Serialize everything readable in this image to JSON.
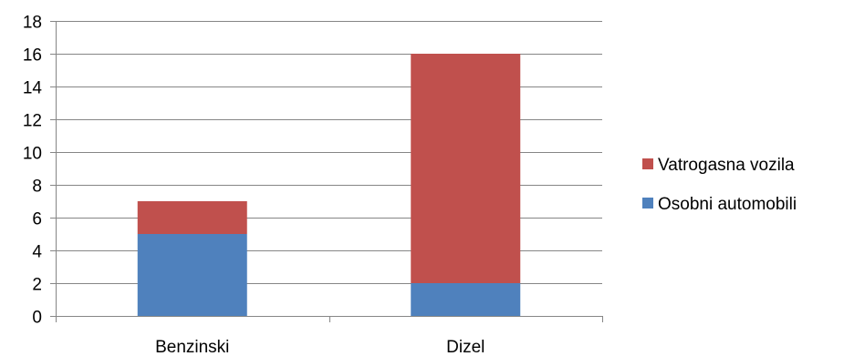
{
  "chart_data": {
    "type": "bar",
    "stacked": true,
    "categories": [
      "Benzinski",
      "Dizel"
    ],
    "series": [
      {
        "name": "Osobni automobili",
        "values": [
          5,
          2
        ],
        "color": "#4F81BD"
      },
      {
        "name": "Vatrogasna vozila",
        "values": [
          2,
          14
        ],
        "color": "#C0504D"
      }
    ],
    "ylim": [
      0,
      18
    ],
    "yticks": [
      0,
      2,
      4,
      6,
      8,
      10,
      12,
      14,
      16,
      18
    ],
    "grid": true,
    "legend_placement": "right",
    "title": "",
    "xlabel": "",
    "ylabel": ""
  }
}
